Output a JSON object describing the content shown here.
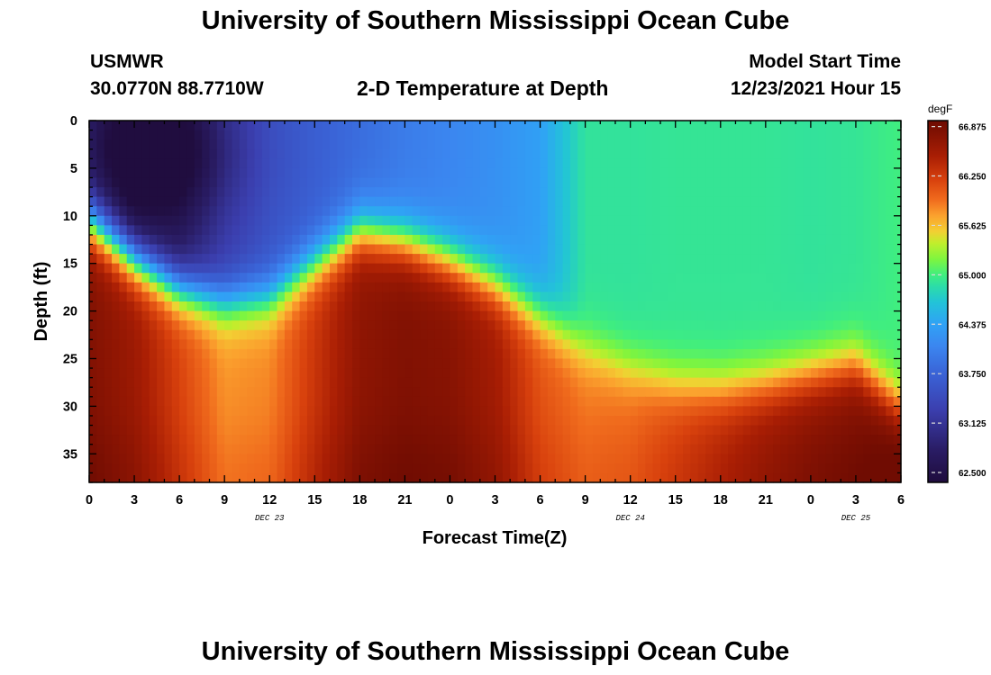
{
  "header": {
    "title": "University of Southern Mississippi Ocean Cube",
    "station": "USMWR",
    "coords": "30.0770N  88.7710W",
    "subtitle": "2-D Temperature at Depth",
    "model_start_label": "Model Start Time",
    "model_start_value": "12/23/2021 Hour 15"
  },
  "footer": {
    "title": "University of Southern Mississippi Ocean Cube"
  },
  "chart_data": {
    "type": "heatmap",
    "title": "2-D Temperature at Depth",
    "xlabel": "Forecast Time(Z)",
    "ylabel": "Depth (ft)",
    "x_range_hours": [
      0,
      54
    ],
    "y_range_ft": [
      0,
      38
    ],
    "x_tick_labels": [
      "0",
      "3",
      "6",
      "9",
      "12",
      "15",
      "18",
      "21",
      "0",
      "3",
      "6",
      "9",
      "12",
      "15",
      "18",
      "21",
      "0",
      "3",
      "6"
    ],
    "y_ticks": [
      0,
      5,
      10,
      15,
      20,
      25,
      30,
      35
    ],
    "day_labels": [
      {
        "label": "DEC 23",
        "hour": 12
      },
      {
        "label": "DEC 24",
        "hour": 36
      },
      {
        "label": "DEC 25",
        "hour": 51
      }
    ],
    "colorbar": {
      "unit": "degF",
      "min": 62.375,
      "max": 66.95,
      "tick_values": [
        62.5,
        63.125,
        63.75,
        64.375,
        65.0,
        65.625,
        66.25,
        66.875
      ],
      "tick_labels": [
        "62.500",
        "63.125",
        "63.750",
        "64.375",
        "65.000",
        "65.625",
        "66.250",
        "66.875"
      ],
      "colormap": [
        [
          62.375,
          "#1f0c3d"
        ],
        [
          62.8,
          "#2a1d66"
        ],
        [
          63.3,
          "#3b3faf"
        ],
        [
          63.75,
          "#3a63d6"
        ],
        [
          64.1,
          "#3b86f0"
        ],
        [
          64.375,
          "#30a2f5"
        ],
        [
          64.65,
          "#22c3d8"
        ],
        [
          64.85,
          "#2cdca9"
        ],
        [
          65.0,
          "#40ee7f"
        ],
        [
          65.2,
          "#7ff53e"
        ],
        [
          65.4,
          "#c1ee2c"
        ],
        [
          65.55,
          "#f3cf33"
        ],
        [
          65.75,
          "#fba12e"
        ],
        [
          65.95,
          "#f06b1d"
        ],
        [
          66.2,
          "#d8410d"
        ],
        [
          66.5,
          "#a91e04"
        ],
        [
          66.95,
          "#6d0b02"
        ]
      ]
    },
    "field_description": "temperature degF vs forecast hour (x) and depth ft (y)",
    "hours": [
      0,
      3,
      6,
      9,
      12,
      15,
      18,
      21,
      24,
      27,
      30,
      33,
      36,
      39,
      42,
      45,
      48,
      51,
      54
    ],
    "thermocline_depth_ft": [
      10.5,
      14.5,
      17.5,
      19.0,
      18.5,
      15.0,
      11.5,
      12.5,
      14.5,
      17.0,
      20.5,
      24.0,
      26.0,
      27.5,
      28.0,
      27.5,
      26.5,
      25.5,
      30.0
    ],
    "upper_layer_temp_degF": [
      63.0,
      62.55,
      62.7,
      63.25,
      63.55,
      63.7,
      63.85,
      64.0,
      64.1,
      64.2,
      64.35,
      64.9,
      64.9,
      64.92,
      64.92,
      64.92,
      64.9,
      64.92,
      65.0
    ],
    "bottom_temp_degF": [
      66.8,
      66.6,
      66.2,
      65.8,
      65.85,
      66.3,
      66.7,
      66.8,
      66.75,
      66.55,
      66.1,
      65.9,
      65.95,
      66.15,
      66.35,
      66.55,
      66.7,
      66.8,
      66.9
    ]
  }
}
